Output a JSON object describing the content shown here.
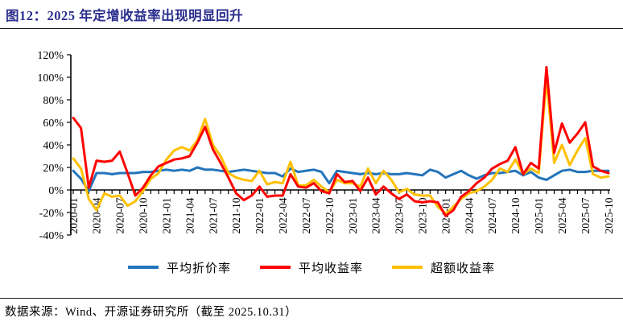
{
  "title": "图12：2025 年定增收益率出现明显回升",
  "source": "数据来源：Wind、开源证券研究所（截至 2025.10.31）",
  "colors": {
    "title": "#2b2f8e",
    "axis": "#000000",
    "discount": "#2374bb",
    "return": "#ff0000",
    "excess": "#ffc000"
  },
  "chart_data": {
    "type": "line",
    "title": "",
    "xlabel": "",
    "ylabel": "",
    "x_start": "2020-01",
    "x_end": "2025-10",
    "x_interval": "monthly",
    "x_tick_labels": [
      "2020-01",
      "2020-04",
      "2020-07",
      "2020-10",
      "2021-01",
      "2021-04",
      "2021-07",
      "2021-10",
      "2022-01",
      "2022-04",
      "2022-07",
      "2022-10",
      "2023-01",
      "2023-04",
      "2023-07",
      "2023-10",
      "2024-01",
      "2024-04",
      "2024-07",
      "2024-10",
      "2025-01",
      "2025-04",
      "2025-07",
      "2025-10"
    ],
    "y_tick_labels": [
      "120%",
      "100%",
      "80%",
      "60%",
      "40%",
      "20%",
      "0%",
      "-20%",
      "-40%"
    ],
    "ylim": [
      -40,
      120
    ],
    "y_unit": "%",
    "grid": false,
    "legend_position": "bottom",
    "series": [
      {
        "name": "平均折价率",
        "color": "#2374bb",
        "values": [
          17,
          10,
          -1,
          15,
          15,
          14,
          15,
          15,
          15,
          16,
          16,
          17,
          18,
          17,
          18,
          17,
          20,
          18,
          18,
          17,
          16,
          17,
          18,
          17,
          16,
          15,
          15,
          12,
          19,
          16,
          17,
          18,
          16,
          6,
          17,
          16,
          15,
          14,
          15,
          14,
          15,
          14,
          14,
          15,
          14,
          13,
          18,
          16,
          11,
          14,
          17,
          13,
          10,
          13,
          15,
          15,
          16,
          17,
          13,
          16,
          11,
          9,
          13,
          17,
          18,
          16,
          16,
          17,
          17,
          17
        ]
      },
      {
        "name": "平均收益率",
        "color": "#ff0000",
        "values": [
          64,
          55,
          2,
          26,
          25,
          26,
          34,
          15,
          -5,
          2,
          13,
          21,
          24,
          27,
          28,
          30,
          42,
          56,
          36,
          24,
          11,
          -3,
          -9,
          -5,
          3,
          -6,
          -5,
          -5,
          14,
          3,
          2,
          6,
          -1,
          -3,
          14,
          7,
          8,
          -1,
          11,
          -4,
          3,
          -3,
          -8,
          -4,
          -10,
          -11,
          -10,
          -11,
          -23,
          -18,
          -6,
          -1,
          6,
          11,
          19,
          23,
          26,
          38,
          14,
          24,
          19,
          109,
          33,
          59,
          42,
          50,
          60,
          21,
          17,
          15
        ]
      },
      {
        "name": "超额收益率",
        "color": "#ffc000",
        "values": [
          28,
          19,
          -8,
          -18,
          -3,
          -6,
          -5,
          -14,
          -10,
          -1,
          10,
          15,
          27,
          35,
          38,
          35,
          44,
          63,
          40,
          30,
          15,
          11,
          9,
          8,
          17,
          5,
          7,
          6,
          25,
          4,
          4,
          9,
          3,
          -2,
          9,
          6,
          6,
          3,
          19,
          6,
          17,
          9,
          -2,
          1,
          -4,
          -5,
          -5,
          -15,
          -21,
          -15,
          -8,
          -3,
          -1,
          3,
          9,
          19,
          16,
          27,
          14,
          19,
          15,
          99,
          24,
          40,
          22,
          35,
          46,
          14,
          11,
          12
        ]
      }
    ]
  }
}
